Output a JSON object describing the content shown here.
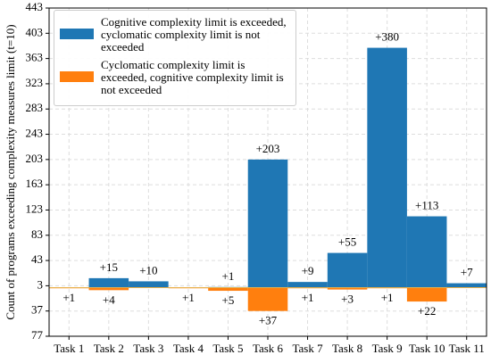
{
  "chart_data": {
    "type": "bar",
    "y_label": "Count of programs exceeding complexity measures limit (t=10)",
    "categories": [
      "Task 1",
      "Task 2",
      "Task 3",
      "Task 4",
      "Task 5",
      "Task 6",
      "Task 7",
      "Task 8",
      "Task 9",
      "Task 10",
      "Task 11"
    ],
    "series": [
      {
        "name": "Cognitive complexity limit is exceeded, cyclomatic complexity limit is not exceeded",
        "color": "#1f77b4",
        "values": [
          0,
          15,
          10,
          0,
          1,
          203,
          9,
          55,
          380,
          113,
          7
        ],
        "value_labels": [
          null,
          "+15",
          "+10",
          null,
          "+1",
          "+203",
          "+9",
          "+55",
          "+380",
          "+113",
          "+7"
        ]
      },
      {
        "name": "Cyclomatic complexity limit is exceeded, cognitive complexity limit is not exceeded",
        "color": "#ff7f0e",
        "values": [
          -1,
          -4,
          0,
          -1,
          -5,
          -37,
          -1,
          -3,
          -1,
          -22,
          0
        ],
        "value_labels": [
          "+1",
          "+4",
          null,
          "+1",
          "+5",
          "+37",
          "+1",
          "+3",
          "+1",
          "+22",
          null
        ]
      }
    ],
    "ylim": [
      -77,
      443
    ],
    "yticks": [
      {
        "value": -77,
        "label": "77"
      },
      {
        "value": -37,
        "label": "37"
      },
      3,
      43,
      83,
      123,
      163,
      203,
      243,
      283,
      323,
      363,
      403,
      443
    ],
    "grid": true,
    "legend": "upper left"
  }
}
